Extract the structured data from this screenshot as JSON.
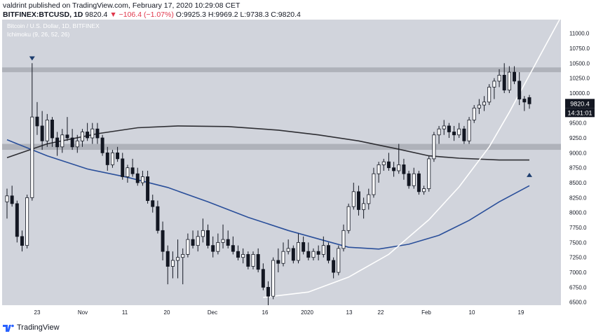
{
  "header": {
    "author": "valdrint",
    "published": "published on TradingView.com, February 17, 2020 10:29:08 CET",
    "symbol": "BITFINEX:BTCUSD, 1D",
    "price": "9820.4",
    "change": "▼ −106.4 (−1.07%)",
    "o_label": "O:",
    "o_value": "9925.3",
    "h_label": "H:",
    "h_value": "9969.2",
    "l_label": "L:",
    "l_value": "9738.3",
    "c_label": "C:",
    "c_value": "9820.4"
  },
  "legend": {
    "title": "Bitcoin / U.S. Dollar, 1D, BITFINEX",
    "indicator": "Ichimoku (9, 26, 52, 26)"
  },
  "price_tag": {
    "price": "9820.4",
    "countdown": "14:31:01"
  },
  "footer": {
    "brand": "TradingView"
  },
  "colors": {
    "background": "#d1d4dc",
    "zone": "#a9abb4",
    "up_fill": "#ffffff",
    "down_fill": "#131722",
    "ma_dark": "#2e2e33",
    "ma_blue": "#2a4f9a",
    "curve": "#ffffff",
    "arrow": "#1d3d6e"
  },
  "chart_data": {
    "type": "candlestick",
    "x_ticks": [
      "23",
      "Nov",
      "11",
      "20",
      "Dec",
      "16",
      "2020",
      "13",
      "22",
      "Feb",
      "10",
      "19"
    ],
    "y_ticks": [
      "11000.0",
      "10750.0",
      "10500.0",
      "10250.0",
      "10000.0",
      "9750.0",
      "9500.0",
      "9250.0",
      "9000.0",
      "8750.0",
      "8500.0",
      "8250.0",
      "8000.0",
      "7750.0",
      "7500.0",
      "7250.0",
      "7000.0",
      "6750.0",
      "6500.0"
    ],
    "ylim": [
      6450,
      11230
    ],
    "grid": true,
    "zones": [
      [
        10350,
        10430
      ],
      [
        9050,
        9150
      ]
    ],
    "candles": [
      [
        8180,
        8400,
        7900,
        8280
      ],
      [
        8280,
        8450,
        8100,
        8150
      ],
      [
        8150,
        8200,
        7500,
        7600
      ],
      [
        7600,
        7700,
        7350,
        7450
      ],
      [
        7450,
        8300,
        7400,
        8250
      ],
      [
        8250,
        10500,
        8200,
        9600
      ],
      [
        9600,
        9850,
        9300,
        9450
      ],
      [
        9450,
        9700,
        9050,
        9200
      ],
      [
        9200,
        9650,
        9100,
        9550
      ],
      [
        9550,
        9600,
        9100,
        9250
      ],
      [
        9250,
        9350,
        8950,
        9100
      ],
      [
        9100,
        9400,
        9000,
        9300
      ],
      [
        9300,
        9600,
        9200,
        9250
      ],
      [
        9250,
        9400,
        9050,
        9100
      ],
      [
        9100,
        9300,
        9000,
        9200
      ],
      [
        9200,
        9400,
        9100,
        9350
      ],
      [
        9350,
        9500,
        9200,
        9250
      ],
      [
        9250,
        9500,
        9150,
        9400
      ],
      [
        9400,
        9500,
        9150,
        9250
      ],
      [
        9250,
        9300,
        8950,
        9000
      ],
      [
        9000,
        9100,
        8700,
        8800
      ],
      [
        8800,
        9050,
        8750,
        9000
      ],
      [
        9000,
        9100,
        8850,
        8900
      ],
      [
        8900,
        9000,
        8550,
        8600
      ],
      [
        8600,
        8800,
        8500,
        8750
      ],
      [
        8750,
        8900,
        8600,
        8650
      ],
      [
        8650,
        8750,
        8450,
        8500
      ],
      [
        8500,
        8700,
        8450,
        8600
      ],
      [
        8600,
        8700,
        8150,
        8200
      ],
      [
        8200,
        8300,
        8000,
        8100
      ],
      [
        8100,
        8200,
        7650,
        7700
      ],
      [
        7700,
        7850,
        7200,
        7350
      ],
      [
        7350,
        7450,
        6800,
        7100
      ],
      [
        7100,
        7350,
        6900,
        7200
      ],
      [
        7200,
        7550,
        6900,
        7250
      ],
      [
        7250,
        7400,
        6800,
        7300
      ],
      [
        7300,
        7650,
        7250,
        7550
      ],
      [
        7550,
        7700,
        7400,
        7450
      ],
      [
        7450,
        7700,
        7350,
        7600
      ],
      [
        7600,
        7900,
        7500,
        7700
      ],
      [
        7700,
        7800,
        7400,
        7450
      ],
      [
        7450,
        7600,
        7250,
        7350
      ],
      [
        7350,
        7650,
        7300,
        7500
      ],
      [
        7500,
        7800,
        7400,
        7550
      ],
      [
        7550,
        7700,
        7400,
        7450
      ],
      [
        7450,
        7600,
        7300,
        7350
      ],
      [
        7350,
        7450,
        7200,
        7250
      ],
      [
        7250,
        7400,
        7150,
        7300
      ],
      [
        7300,
        7350,
        7050,
        7100
      ],
      [
        7100,
        7350,
        7050,
        7300
      ],
      [
        7300,
        7400,
        7000,
        7050
      ],
      [
        7050,
        7150,
        6700,
        6750
      ],
      [
        6750,
        6850,
        6450,
        6600
      ],
      [
        6600,
        7250,
        6550,
        7200
      ],
      [
        7200,
        7400,
        7000,
        7150
      ],
      [
        7150,
        7500,
        7100,
        7350
      ],
      [
        7350,
        7550,
        7300,
        7400
      ],
      [
        7400,
        7450,
        7150,
        7200
      ],
      [
        7200,
        7650,
        7150,
        7500
      ],
      [
        7500,
        7600,
        7300,
        7350
      ],
      [
        7350,
        7500,
        7200,
        7250
      ],
      [
        7250,
        7400,
        7200,
        7350
      ],
      [
        7350,
        7450,
        7200,
        7300
      ],
      [
        7300,
        7600,
        7250,
        7450
      ],
      [
        7450,
        7500,
        7150,
        7200
      ],
      [
        7200,
        7250,
        6900,
        7000
      ],
      [
        7000,
        7450,
        6950,
        7400
      ],
      [
        7400,
        7800,
        7350,
        7700
      ],
      [
        7700,
        8150,
        7650,
        8100
      ],
      [
        8100,
        8500,
        8050,
        8350
      ],
      [
        8350,
        8450,
        7950,
        8050
      ],
      [
        8050,
        8250,
        7900,
        8150
      ],
      [
        8150,
        8400,
        8050,
        8300
      ],
      [
        8300,
        8750,
        8250,
        8650
      ],
      [
        8650,
        8850,
        8500,
        8800
      ],
      [
        8800,
        8900,
        8700,
        8850
      ],
      [
        8850,
        9000,
        8700,
        8750
      ],
      [
        8750,
        8850,
        8600,
        8700
      ],
      [
        8700,
        9150,
        8650,
        8800
      ],
      [
        8800,
        8900,
        8550,
        8650
      ],
      [
        8650,
        8700,
        8400,
        8450
      ],
      [
        8450,
        8750,
        8400,
        8650
      ],
      [
        8650,
        8700,
        8300,
        8350
      ],
      [
        8350,
        8450,
        8300,
        8400
      ],
      [
        8400,
        8950,
        8350,
        8900
      ],
      [
        8900,
        9350,
        8850,
        9300
      ],
      [
        9300,
        9450,
        9150,
        9400
      ],
      [
        9400,
        9550,
        9300,
        9450
      ],
      [
        9450,
        9500,
        9250,
        9350
      ],
      [
        9350,
        9450,
        9200,
        9300
      ],
      [
        9300,
        9500,
        9250,
        9400
      ],
      [
        9400,
        9450,
        9150,
        9200
      ],
      [
        9200,
        9600,
        9150,
        9550
      ],
      [
        9550,
        9800,
        9500,
        9750
      ],
      [
        9750,
        9900,
        9650,
        9800
      ],
      [
        9800,
        9950,
        9700,
        9850
      ],
      [
        9850,
        10150,
        9800,
        10100
      ],
      [
        10100,
        10250,
        9900,
        10200
      ],
      [
        10200,
        10400,
        10100,
        10300
      ],
      [
        10300,
        10500,
        10000,
        10050
      ],
      [
        10050,
        10450,
        10000,
        10350
      ],
      [
        10350,
        10450,
        10150,
        10200
      ],
      [
        10200,
        10350,
        9800,
        9900
      ],
      [
        9900,
        9950,
        9700,
        9850
      ],
      [
        9925.3,
        9969.2,
        9738.3,
        9820.4
      ]
    ],
    "moving_averages": [
      {
        "name": "dark",
        "points": [
          [
            0,
            8920
          ],
          [
            8,
            9150
          ],
          [
            18,
            9320
          ],
          [
            26,
            9420
          ],
          [
            34,
            9450
          ],
          [
            44,
            9440
          ],
          [
            54,
            9380
          ],
          [
            62,
            9300
          ],
          [
            70,
            9200
          ],
          [
            78,
            9060
          ],
          [
            84,
            8950
          ],
          [
            90,
            8910
          ],
          [
            98,
            8880
          ],
          [
            104,
            8880
          ]
        ]
      },
      {
        "name": "blue",
        "points": [
          [
            0,
            9220
          ],
          [
            8,
            8950
          ],
          [
            16,
            8730
          ],
          [
            24,
            8590
          ],
          [
            32,
            8420
          ],
          [
            40,
            8180
          ],
          [
            48,
            7920
          ],
          [
            56,
            7700
          ],
          [
            62,
            7560
          ],
          [
            68,
            7420
          ],
          [
            74,
            7390
          ],
          [
            80,
            7470
          ],
          [
            86,
            7620
          ],
          [
            92,
            7870
          ],
          [
            98,
            8180
          ],
          [
            104,
            8450
          ]
        ]
      }
    ],
    "parabola": [
      [
        51,
        6580
      ],
      [
        60,
        6670
      ],
      [
        68,
        6920
      ],
      [
        76,
        7300
      ],
      [
        84,
        7880
      ],
      [
        90,
        8430
      ],
      [
        96,
        9100
      ],
      [
        100,
        9680
      ],
      [
        104,
        10300
      ],
      [
        110,
        11230
      ]
    ],
    "markers": [
      {
        "direction": "down",
        "index": 5,
        "price": 10580
      },
      {
        "direction": "up",
        "index": 104,
        "price": 8630
      }
    ]
  }
}
